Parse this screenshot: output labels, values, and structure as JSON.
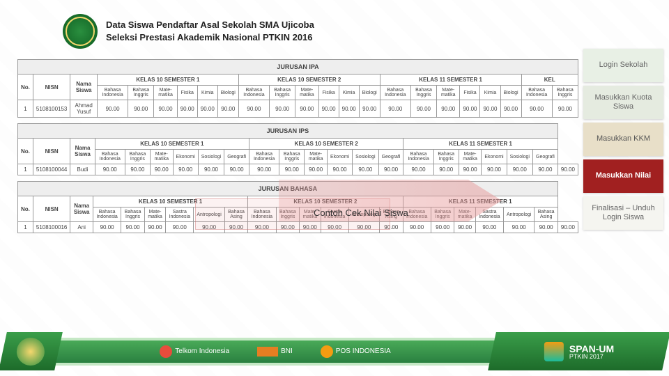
{
  "header": {
    "title_line1": "Data Siswa Pendaftar Asal Sekolah SMA Ujicoba",
    "title_line2": "Seleksi Prestasi Akademik Nasional PTKIN 2016"
  },
  "nav": {
    "item1": "Login Sekolah",
    "item2": "Masukkan Kuota Siswa",
    "item3": "Masukkan KKM",
    "item4": "Masukkan Nilai",
    "item5": "Finalisasi – Unduh Login Siswa"
  },
  "callout": "Contoh Cek Nilai Siswa",
  "sections": {
    "ipa": {
      "label": "JURUSAN IPA",
      "semesters": [
        "KELAS 10 SEMESTER 1",
        "KELAS 10 SEMESTER 2",
        "KELAS 11 SEMESTER 1",
        "KEL"
      ],
      "subjects": [
        "Bahasa Indonesia",
        "Bahasa Inggris",
        "Mate- matika",
        "Fisika",
        "Kimia",
        "Biologi"
      ],
      "row": {
        "no": "1",
        "nisn": "5108100153",
        "nama": "Ahmad Yusuf",
        "vals": [
          "90.00",
          "90.00",
          "90.00",
          "90.00",
          "90.00",
          "90.00",
          "90.00",
          "90.00",
          "90.00",
          "90.00",
          "90.00",
          "90.00",
          "90.00",
          "90.00",
          "90.00",
          "90.00",
          "90.00",
          "90.00",
          "90.00",
          "90.00"
        ]
      }
    },
    "ips": {
      "label": "JURUSAN IPS",
      "semesters": [
        "KELAS 10 SEMESTER 1",
        "KELAS 10 SEMESTER 2",
        "KELAS 11 SEMESTER 1"
      ],
      "subjects": [
        "Bahasa Indonesia",
        "Bahasa Inggris",
        "Mate- matika",
        "Ekonomi",
        "Sosiologi",
        "Geografi"
      ],
      "row": {
        "no": "1",
        "nisn": "5108100044",
        "nama": "Budi",
        "vals": [
          "90.00",
          "90.00",
          "90.00",
          "90.00",
          "90.00",
          "90.00",
          "90.00",
          "90.00",
          "90.00",
          "90.00",
          "90.00",
          "90.00",
          "90.00",
          "90.00",
          "90.00",
          "90.00",
          "90.00",
          "90.00",
          "90.00"
        ]
      }
    },
    "bahasa": {
      "label": "JURUSAN BAHASA",
      "semesters": [
        "KELAS 10 SEMESTER 1",
        "KELAS 10 SEMESTER 2",
        "KELAS 11 SEMESTER 1"
      ],
      "subjects": [
        "Bahasa Indonesia",
        "Bahasa Inggris",
        "Mate- matika",
        "Sastra Indonesia",
        "Antropologi",
        "Bahasa Asing"
      ],
      "row": {
        "no": "1",
        "nisn": "5108100016",
        "nama": "Ani",
        "vals": [
          "90.00",
          "90.00",
          "90.00",
          "90.00",
          "90.00",
          "90.00",
          "90.00",
          "90.00",
          "90.00",
          "90.00",
          "90.00",
          "90.00",
          "90.00",
          "90.00",
          "90.00",
          "90.00",
          "90.00",
          "90.00",
          "90.00"
        ]
      }
    }
  },
  "columns": {
    "no": "No.",
    "nisn": "NISN",
    "nama": "Nama Siswa"
  },
  "footer": {
    "telkom": "Telkom Indonesia",
    "bni": "BNI",
    "pos": "POS INDONESIA",
    "brand": "SPAN-UM",
    "brand_sub": "PTKIN 2017"
  },
  "colors": {
    "nav_active": "#a12020",
    "green_dark": "#1d6b2a",
    "green": "#3a9e4a"
  }
}
